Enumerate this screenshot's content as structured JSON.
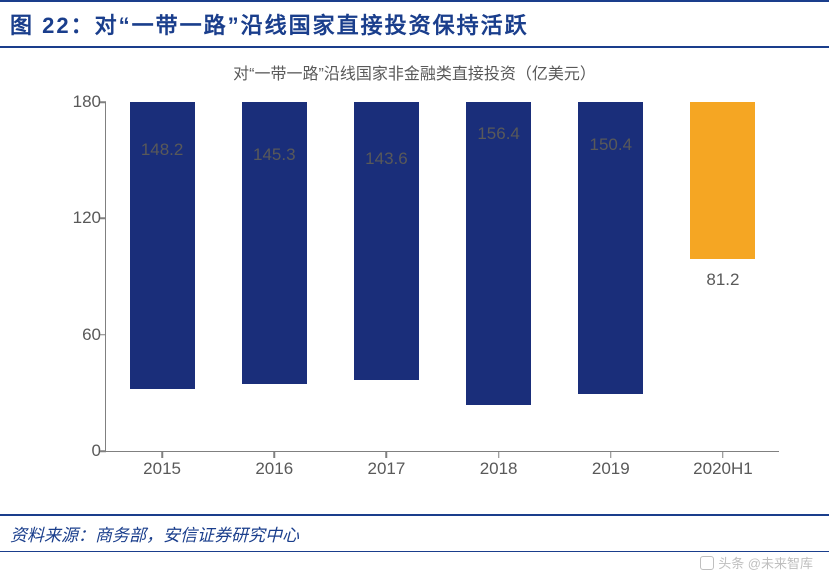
{
  "title": {
    "prefix": "图 22：",
    "text": "对“一带一路”沿线国家直接投资保持活跃",
    "color": "#1a3e8c",
    "fontsize": 22,
    "border_color": "#1a3e8c"
  },
  "subtitle": {
    "text": "对“一带一路”沿线国家非金融类直接投资（亿美元）",
    "color": "#595959",
    "fontsize": 16
  },
  "chart": {
    "type": "bar",
    "categories": [
      "2015",
      "2016",
      "2017",
      "2018",
      "2019",
      "2020H1"
    ],
    "values": [
      148.2,
      145.3,
      143.6,
      156.4,
      150.4,
      81.2
    ],
    "bar_colors": [
      "#1a2e7a",
      "#1a2e7a",
      "#1a2e7a",
      "#1a2e7a",
      "#1a2e7a",
      "#f5a623"
    ],
    "ylim": [
      0,
      180
    ],
    "yticks": [
      0,
      60,
      120,
      180
    ],
    "axis_color": "#808080",
    "axis_label_color": "#595959",
    "value_label_color": "#595959",
    "axis_fontsize": 17,
    "value_fontsize": 17,
    "bar_width_ratio": 0.58,
    "background_color": "#ffffff"
  },
  "source": {
    "text": "资料来源：商务部，安信证券研究中心",
    "color": "#1a3e8c",
    "border_color": "#1a3e8c",
    "fontsize": 17
  },
  "watermark": {
    "text": "头条 @未来智库",
    "color": "#bfbfbf"
  }
}
